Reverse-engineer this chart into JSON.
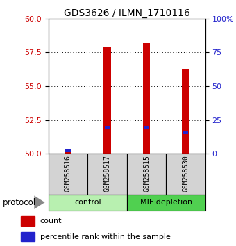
{
  "title": "GDS3626 / ILMN_1710116",
  "samples": [
    "GSM258516",
    "GSM258517",
    "GSM258515",
    "GSM258530"
  ],
  "bar_color_red": "#cc0000",
  "bar_color_blue": "#2222cc",
  "ylim": [
    50,
    60
  ],
  "yticks_left": [
    50,
    52.5,
    55,
    57.5,
    60
  ],
  "yticks_right": [
    0,
    25,
    50,
    75,
    100
  ],
  "ylabel_left_color": "#cc0000",
  "ylabel_right_color": "#2222cc",
  "count_values": [
    50.28,
    57.85,
    58.2,
    56.3
  ],
  "percentile_values": [
    50.22,
    51.9,
    51.92,
    51.55
  ],
  "bar_width": 0.18,
  "blue_bar_width": 0.13,
  "blue_bar_height": 0.22,
  "legend_count_label": "count",
  "legend_percentile_label": "percentile rank within the sample",
  "protocol_label": "protocol",
  "sample_box_color": "#d3d3d3",
  "control_color": "#b8f0b0",
  "mif_color": "#50d050",
  "title_fontsize": 10,
  "tick_fontsize": 8,
  "sample_fontsize": 7,
  "group_fontsize": 8,
  "legend_fontsize": 8
}
